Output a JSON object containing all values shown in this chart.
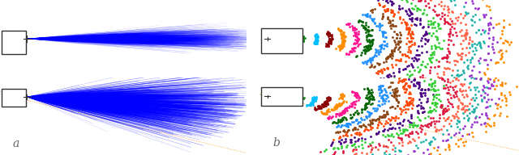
{
  "fig_width": 6.4,
  "fig_height": 1.92,
  "dpi": 100,
  "bg_color": "#ffffff",
  "label_a": "a",
  "label_b": "b",
  "label_fontsize": 10,
  "box_color": "#333333",
  "colors_cycle": [
    "#DAA520",
    "#9400D3",
    "#228B22",
    "#00BFFF",
    "#8B0000",
    "#FF8C00",
    "#FF1493",
    "#006400",
    "#1E90FF",
    "#8B4513",
    "#FF4500",
    "#4B0082",
    "#32CD32",
    "#DC143C",
    "#FF6347",
    "#20B2AA",
    "#9932CC",
    "#FF8C00"
  ]
}
